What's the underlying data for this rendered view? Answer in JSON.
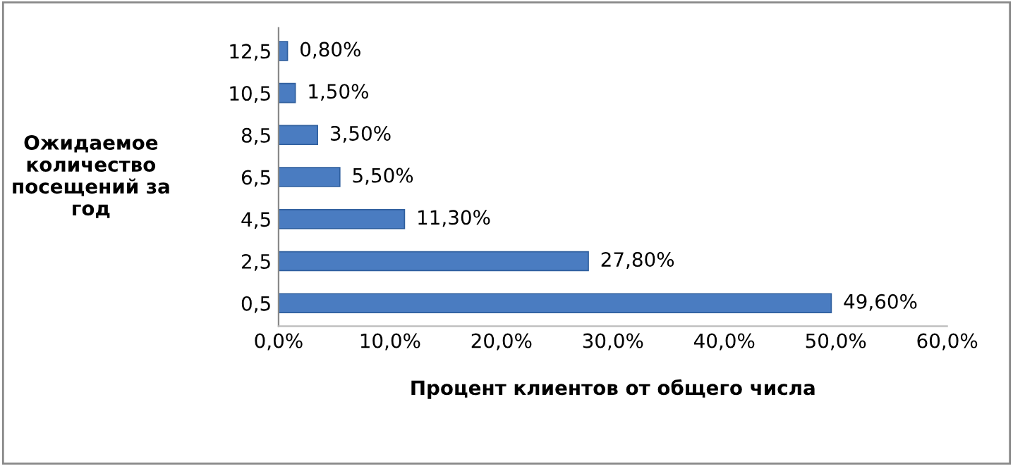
{
  "chart_data": {
    "type": "bar",
    "orientation": "horizontal",
    "xlabel": "Процент клиентов от общего числа",
    "ylabel": "Ожидаемое\nколичество\nпосещений за\nгод",
    "categories": [
      "12,5",
      "10,5",
      "8,5",
      "6,5",
      "4,5",
      "2,5",
      "0,5"
    ],
    "series": [
      {
        "color": "#4a7cc1",
        "values": [
          0.8,
          1.5,
          3.5,
          5.5,
          11.3,
          27.8,
          49.6
        ],
        "value_labels": [
          "0,80%",
          "1,50%",
          "3,50%",
          "5,50%",
          "11,30%",
          "27,80%",
          "49,60%"
        ]
      }
    ],
    "xlim": [
      0,
      60
    ],
    "xticks": [
      {
        "value": 0,
        "label": "0,0%"
      },
      {
        "value": 10,
        "label": "10,0%"
      },
      {
        "value": 20,
        "label": "20,0%"
      },
      {
        "value": 30,
        "label": "30,0%"
      },
      {
        "value": 40,
        "label": "40,0%"
      },
      {
        "value": 50,
        "label": "50,0%"
      },
      {
        "value": 60,
        "label": "60,0%"
      }
    ],
    "grid": false,
    "legend": false
  }
}
